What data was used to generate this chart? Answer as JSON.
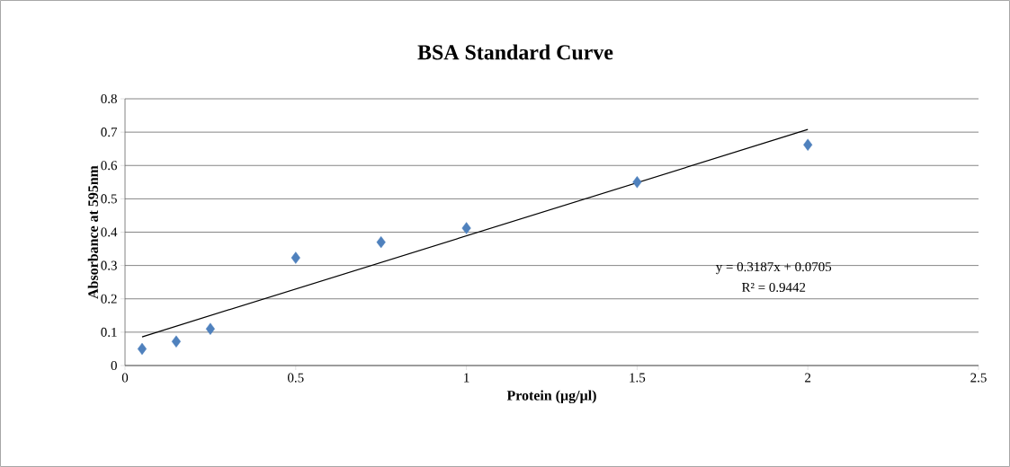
{
  "chart_data": {
    "type": "scatter",
    "title": "BSA Standard Curve",
    "xlabel": "Protein (µg/µl)",
    "ylabel": "Absorbance at 595nm",
    "xlim": [
      0,
      2.5
    ],
    "xticks": [
      0,
      0.5,
      1,
      1.5,
      2,
      2.5
    ],
    "ylim": [
      0,
      0.8
    ],
    "yticks": [
      0,
      0.1,
      0.2,
      0.3,
      0.4,
      0.5,
      0.6,
      0.7,
      0.8
    ],
    "grid": "y",
    "series": [
      {
        "color": "#4f81bd",
        "marker": "diamond",
        "x": [
          0.05,
          0.15,
          0.25,
          0.5,
          0.75,
          1,
          1.5,
          2
        ],
        "values": [
          0.05,
          0.072,
          0.11,
          0.323,
          0.37,
          0.412,
          0.55,
          0.662
        ]
      },
      {
        "type": "line",
        "color": "#000000",
        "marker": "none",
        "line_style": "solid",
        "x": [
          0.05,
          2
        ],
        "values": [
          0.086,
          0.708
        ]
      }
    ],
    "annotations": [
      "y = 0.3187x + 0.0705",
      "R² = 0.9442"
    ]
  }
}
